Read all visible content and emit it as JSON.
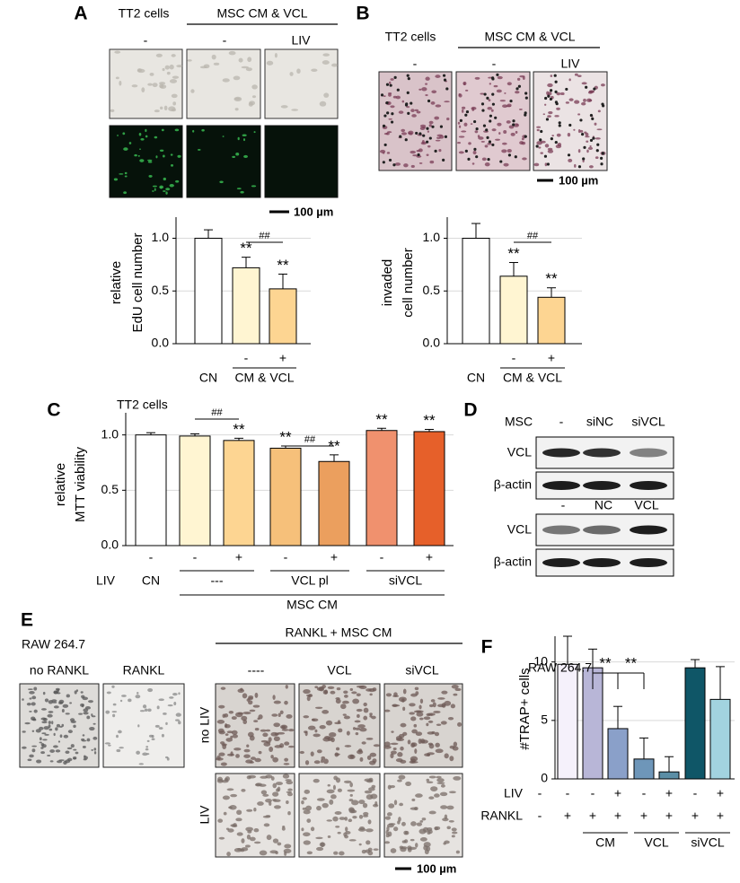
{
  "figure": {
    "A": {
      "letter": "A",
      "cell_line": "TT2 cells",
      "treatment": "MSC CM & VCL",
      "columns": [
        "-",
        "-",
        "LIV"
      ],
      "scale_bar": "100 µm"
    },
    "B": {
      "letter": "B",
      "cell_line": "TT2 cells",
      "treatment": "MSC CM & VCL",
      "columns": [
        "-",
        "-",
        "LIV"
      ],
      "scale_bar": "100 µm"
    },
    "C": {
      "letter": "C"
    },
    "D": {
      "letter": "D",
      "top": {
        "row_label": "MSC",
        "columns": [
          "-",
          "siNC",
          "siVCL"
        ],
        "bands": [
          "VCL",
          "β-actin"
        ]
      },
      "bottom": {
        "columns": [
          "-",
          "NC",
          "VCL"
        ],
        "bands": [
          "VCL",
          "β-actin"
        ]
      }
    },
    "E": {
      "letter": "E",
      "cell_line": "RAW 264.7",
      "controls": [
        "no RANKL",
        "RANKL"
      ],
      "treatment": "RANKL + MSC CM",
      "columns": [
        "----",
        "VCL",
        "siVCL"
      ],
      "rows": [
        "no LIV",
        "LIV"
      ],
      "scale_bar": "100 µm"
    },
    "F": {
      "letter": "F"
    }
  },
  "chart_data": [
    {
      "type": "bar",
      "ylabel": [
        "relative",
        "EdU cell number"
      ],
      "values": [
        1.0,
        0.72,
        0.52
      ],
      "errors": [
        0.08,
        0.1,
        0.14
      ],
      "colors": [
        "#ffffff",
        "#fff5d2",
        "#fdd592"
      ],
      "ylim": [
        0,
        1.2
      ],
      "yticks": [
        {
          "value": 0,
          "label": "0.0"
        },
        {
          "value": 0.5,
          "label": "0.5"
        },
        {
          "value": 1,
          "label": "1.0"
        }
      ],
      "grid": true,
      "stars": [
        null,
        "**",
        "**"
      ],
      "brackets": [
        {
          "label": "##",
          "from": 1,
          "to": 2
        }
      ],
      "rows": [
        {
          "values": [
            null,
            "-",
            "+"
          ]
        },
        {
          "values": [
            "CN",
            null,
            null
          ]
        }
      ],
      "groups": [
        [
          {
            "label": "CM & VCL",
            "from": 1,
            "to": 2
          }
        ]
      ]
    },
    {
      "type": "bar",
      "ylabel": [
        "invaded",
        "cell number"
      ],
      "values": [
        1.0,
        0.64,
        0.44
      ],
      "errors": [
        0.14,
        0.13,
        0.09
      ],
      "colors": [
        "#ffffff",
        "#fff5d2",
        "#fdd592"
      ],
      "ylim": [
        0,
        1.2
      ],
      "yticks": [
        {
          "value": 0,
          "label": "0.0"
        },
        {
          "value": 0.5,
          "label": "0.5"
        },
        {
          "value": 1,
          "label": "1.0"
        }
      ],
      "grid": true,
      "stars": [
        null,
        "**",
        "**"
      ],
      "brackets": [
        {
          "label": "##",
          "from": 1,
          "to": 2
        }
      ],
      "rows": [
        {
          "values": [
            null,
            "-",
            "+"
          ]
        },
        {
          "values": [
            "CN",
            null,
            null
          ]
        }
      ],
      "groups": [
        [
          {
            "label": "CM & VCL",
            "from": 1,
            "to": 2
          }
        ]
      ]
    },
    {
      "type": "bar",
      "title": "TT2 cells",
      "ylabel": [
        "relative",
        "MTT viability"
      ],
      "values": [
        1.0,
        0.99,
        0.95,
        0.88,
        0.76,
        1.04,
        1.03
      ],
      "errors": [
        0.02,
        0.02,
        0.02,
        0.02,
        0.06,
        0.02,
        0.02
      ],
      "colors": [
        "#ffffff",
        "#fff5d2",
        "#fdd592",
        "#f6c07a",
        "#eb9f5e",
        "#f0916e",
        "#e6602a"
      ],
      "ylim": [
        0,
        1.2
      ],
      "yticks": [
        {
          "value": 0,
          "label": "0.0"
        },
        {
          "value": 0.5,
          "label": "0.5"
        },
        {
          "value": 1,
          "label": "1.0"
        }
      ],
      "grid": true,
      "stars": [
        null,
        null,
        "**",
        "**",
        "**",
        "**",
        "**"
      ],
      "brackets": [
        {
          "label": "##",
          "from": 1,
          "to": 2
        },
        {
          "label": "##",
          "from": 3,
          "to": 4
        }
      ],
      "rows": [
        {
          "values": [
            "-",
            "-",
            "+",
            "-",
            "+",
            "-",
            "+"
          ]
        },
        {
          "label": "LIV",
          "values": [
            "CN",
            null,
            null,
            null,
            null,
            null,
            null
          ]
        }
      ],
      "groups": [
        [
          {
            "label": "---",
            "from": 1,
            "to": 2
          },
          {
            "label": "VCL pl",
            "from": 3,
            "to": 4
          },
          {
            "label": "siVCL",
            "from": 5,
            "to": 6
          }
        ],
        [
          {
            "label": "MSC CM",
            "from": 1,
            "to": 6
          }
        ]
      ]
    },
    {
      "type": "bar",
      "title": "RAW 264.7",
      "ylabel": [
        "#TRAP+ cells"
      ],
      "values": [
        null,
        9.8,
        9.5,
        4.3,
        1.7,
        0.6,
        9.5,
        6.8
      ],
      "errors": [
        null,
        2.4,
        1.6,
        1.9,
        1.8,
        1.3,
        0.7,
        2.8
      ],
      "colors": [
        null,
        "#f5f1fb",
        "#b8b6d7",
        "#8aa0c9",
        "#6e96b9",
        "#5b8ea5",
        "#0f5667",
        "#a2d3df"
      ],
      "ylim": [
        0,
        12.2
      ],
      "yticks": [
        0,
        5,
        10
      ],
      "grid": true,
      "brackets": [
        {
          "label": "**",
          "from": 2,
          "to": 3
        },
        {
          "label": "**",
          "from": 2,
          "to": 4
        }
      ],
      "rows": [
        {
          "label": "LIV",
          "values": [
            "-",
            "-",
            "-",
            "+",
            "-",
            "+",
            "-",
            "+"
          ]
        },
        {
          "label": "RANKL",
          "values": [
            "-",
            "+",
            "+",
            "+",
            "+",
            "+",
            "+",
            "+"
          ]
        }
      ],
      "groups": [
        [
          {
            "label": "CM",
            "from": 2,
            "to": 3
          },
          {
            "label": "VCL",
            "from": 4,
            "to": 5
          },
          {
            "label": "siVCL",
            "from": 6,
            "to": 7
          }
        ]
      ]
    }
  ]
}
